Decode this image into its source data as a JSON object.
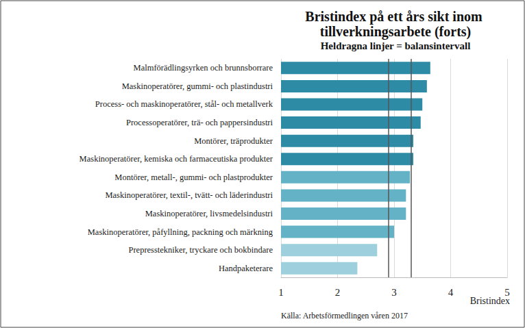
{
  "chart_data": {
    "type": "bar",
    "orientation": "horizontal",
    "title": "Bristindex på ett års sikt inom tillverkningsarbete (forts)",
    "subtitle": "Heldragna linjer = balansintervall",
    "xlabel": "Bristindex",
    "source": "Källa: Arbetsförmedlingen våren 2017",
    "categories": [
      "Malmförädlingsyrken och brunnsborrare",
      "Maskinoperatörer, gummi- och plastindustri",
      "Process- och maskinoperatörer, stål- och metallverk",
      "Processoperatörer, trä- och pappersindustri",
      "Montörer, träprodukter",
      "Maskinoperatörer, kemiska och farmaceutiska produkter",
      "Montörer, metall-, gummi- och plastprodukter",
      "Maskinoperatörer, textil-, tvätt- och läderindustri",
      "Maskinoperatörer, livsmedelsindustri",
      "Maskinoperatörer, påfyllning, packning och märkning",
      "Prepresstekniker, tryckare och bokbindare",
      "Handpaketerare"
    ],
    "values": [
      3.64,
      3.58,
      3.5,
      3.47,
      3.34,
      3.34,
      3.28,
      3.21,
      3.21,
      3.0,
      2.7,
      2.35
    ],
    "colors": [
      "#2e8ba6",
      "#2e8ba6",
      "#2e8ba6",
      "#2e8ba6",
      "#2e8ba6",
      "#2e8ba6",
      "#63b2c6",
      "#63b2c6",
      "#63b2c6",
      "#63b2c6",
      "#9dcfdc",
      "#9dcfdc"
    ],
    "reference_lines": [
      2.9,
      3.3
    ],
    "xlim": [
      1,
      5
    ],
    "xticks": [
      1,
      2,
      3,
      4,
      5
    ],
    "grid": true
  }
}
